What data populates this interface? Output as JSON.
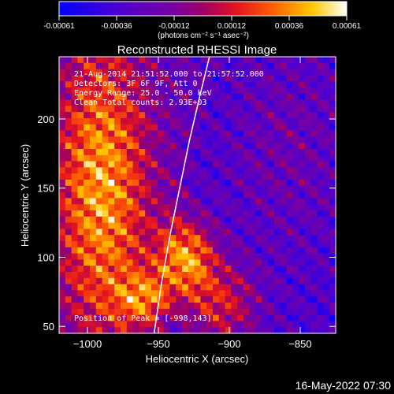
{
  "chart_data": {
    "type": "heatmap",
    "title": "Reconstructed RHESSI Image",
    "xlabel": "Heliocentric X (arcsec)",
    "ylabel": "Heliocentric Y (arcsec)",
    "xlim": [
      -1020,
      -825
    ],
    "ylim": [
      45,
      245
    ],
    "x_ticks": [
      -1000,
      -950,
      -900,
      -850
    ],
    "y_ticks": [
      50,
      100,
      150,
      200
    ],
    "colorbar": {
      "ticks": [
        "-0.00061",
        "-0.00036",
        "-0.00012",
        "0.00012",
        "0.00036",
        "0.00061"
      ],
      "unit_label": "(photons cm⁻² s⁻¹ asec⁻²)",
      "range": [
        -0.00061,
        0.00061
      ]
    },
    "info_lines": [
      "21-Aug-2014 21:51:52.000 to 21:57:52.000",
      "Detectors: 3F 6F 9F, Att 0",
      "Energy Range: 25.0 - 50.0 keV",
      "Clean    Total counts: 2.93E+03"
    ],
    "peak_label": "Position of Peak = [-998,143]",
    "peak": {
      "x": -998,
      "y": 143
    },
    "limb_color": "#ffffff"
  },
  "footer": {
    "timestamp": "16-May-2022 07:30"
  }
}
